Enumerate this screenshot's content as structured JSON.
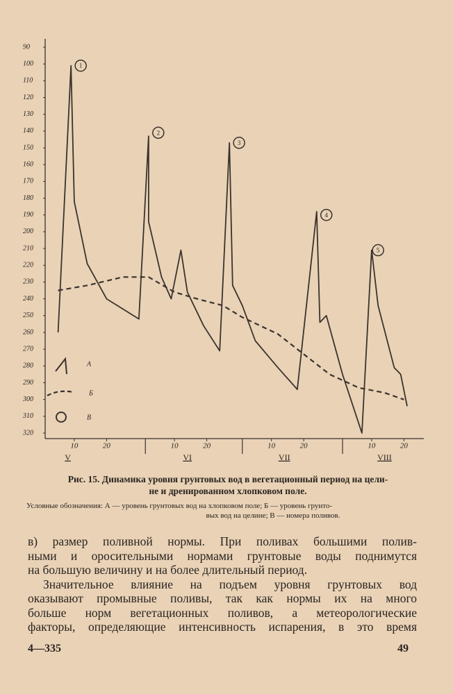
{
  "chart_data": {
    "type": "line",
    "ylim": [
      90,
      320
    ],
    "y_reversed": true,
    "yticks": [
      90,
      100,
      110,
      120,
      130,
      140,
      150,
      160,
      170,
      180,
      190,
      200,
      210,
      220,
      230,
      240,
      250,
      260,
      270,
      280,
      290,
      300,
      310,
      320
    ],
    "xlim": [
      1,
      116
    ],
    "xticks": [
      {
        "value": 10,
        "label": "10"
      },
      {
        "value": 20,
        "label": "20"
      },
      {
        "value": 41,
        "label": "10"
      },
      {
        "value": 51,
        "label": "20"
      },
      {
        "value": 71,
        "label": "10"
      },
      {
        "value": 81,
        "label": "20"
      },
      {
        "value": 102,
        "label": "10"
      },
      {
        "value": 112,
        "label": "20"
      }
    ],
    "month_labels": [
      {
        "value": 8,
        "label": "V"
      },
      {
        "value": 45,
        "label": "VI"
      },
      {
        "value": 75,
        "label": "VII"
      },
      {
        "value": 106,
        "label": "VIII"
      }
    ],
    "month_bounds": [
      32,
      62,
      93
    ],
    "series": [
      {
        "name": "А",
        "color": "#3a332d",
        "style": "solid",
        "x": [
          5,
          9,
          10,
          14,
          20,
          30,
          33,
          33,
          37,
          40,
          43,
          45,
          50,
          55,
          58,
          59,
          62,
          66,
          73,
          79,
          85,
          86,
          88,
          93,
          99,
          102,
          104,
          109,
          111,
          113
        ],
        "values": [
          260,
          101,
          182,
          219,
          240,
          252,
          143,
          194,
          227,
          240,
          211,
          236,
          256,
          271,
          147,
          232,
          244,
          265,
          281,
          294,
          188,
          254,
          250,
          285,
          320,
          211,
          244,
          281,
          285,
          304
        ]
      },
      {
        "name": "Б",
        "color": "#3a332d",
        "style": "dashed",
        "x": [
          5,
          14,
          25,
          33,
          41,
          48,
          56,
          62,
          73,
          81,
          89,
          98,
          106,
          112
        ],
        "values": [
          235,
          232,
          227,
          227,
          236,
          240,
          244,
          251,
          261,
          273,
          285,
          293,
          296,
          300
        ]
      }
    ],
    "legend_marker_name": "В",
    "legend_corner": "lower left",
    "annotations": [
      {
        "label": "1",
        "x": 12,
        "y": 101
      },
      {
        "label": "2",
        "x": 36,
        "y": 141
      },
      {
        "label": "3",
        "x": 61,
        "y": 147
      },
      {
        "label": "4",
        "x": 88,
        "y": 190
      },
      {
        "label": "5",
        "x": 104,
        "y": 211
      }
    ]
  },
  "caption": {
    "title": [
      "Рис. 15. Динамика уровня грунтовых вод в вегетационный период на цели-",
      "не и дренированном хлопковом поле."
    ],
    "legend": [
      "Условные обозначения: А — уровень грунтовых вод на хлопковом поле; Б — уровень грунто-",
      "вых вод на целине; В — номера поливов."
    ]
  },
  "paragraphs": [
    [
      "в) размер поливной нормы. При поливах большими полив-",
      "ными и оросительными нормами грунтовые воды поднимутся",
      "на большую величину и на более длительный период."
    ],
    [
      "Значительное влияние на подъем уровня грунтовых вод",
      "оказывают промывные поливы, так как нормы их на много",
      "больше норм вегетационных поливов, а метеорологические",
      "факторы, определяющие интенсивность испарения, в это время"
    ]
  ],
  "footer": {
    "signature": "4—335",
    "page_number": "49"
  }
}
